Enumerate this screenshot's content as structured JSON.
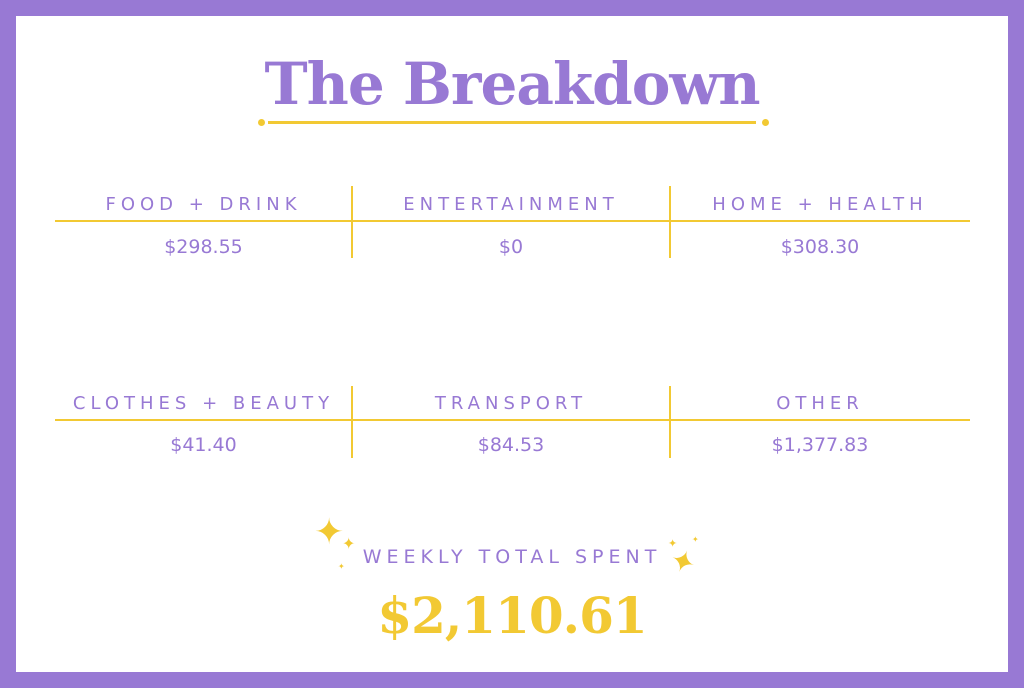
{
  "title": "The Breakdown",
  "colors": {
    "purple": "#9879d4",
    "yellow": "#f2c933"
  },
  "categories": [
    {
      "label": "FOOD + DRINK",
      "amount": "$298.55"
    },
    {
      "label": "ENTERTAINMENT",
      "amount": "$0"
    },
    {
      "label": "HOME + HEALTH",
      "amount": "$308.30"
    },
    {
      "label": "CLOTHES + BEAUTY",
      "amount": "$41.40"
    },
    {
      "label": "TRANSPORT",
      "amount": "$84.53"
    },
    {
      "label": "OTHER",
      "amount": "$1,377.83"
    }
  ],
  "total": {
    "label": "WEEKLY TOTAL SPENT",
    "amount": "$2,110.61"
  },
  "icons": [
    "sparkle-icon"
  ]
}
